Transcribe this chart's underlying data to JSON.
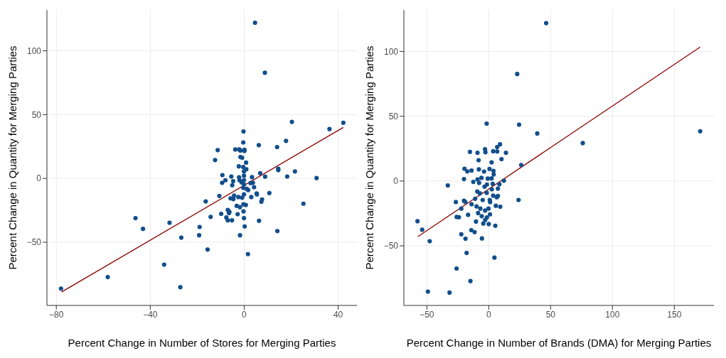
{
  "chart_data": [
    {
      "type": "scatter",
      "xlabel": "Percent Change in Number of Stores for Merging Parties",
      "ylabel": "Percent Change in Quantity for Merging Parties",
      "xlim": [
        -84,
        48
      ],
      "ylim": [
        -99.5,
        132
      ],
      "xticks": [
        {
          "value": -80,
          "label": "−80"
        },
        {
          "value": -40,
          "label": "−40"
        },
        0,
        40
      ],
      "yticks": [
        {
          "value": -50,
          "label": "−50"
        },
        0,
        50,
        100
      ],
      "grid": true,
      "series": [
        {
          "marker": "circle",
          "color": "#124e8c",
          "x": [
            4.6,
            8.8,
            20.3,
            42.2,
            36.3,
            -0.3,
            17.8,
            -0.4,
            6.2,
            14,
            -11.3,
            -3.8,
            -2.1,
            -1.6,
            0.1,
            0.1,
            -12.4,
            -1.6,
            -0.9,
            0.8,
            -2.3,
            -0.4,
            0.9,
            14.5,
            14.5,
            6.8,
            21.6,
            -9.3,
            -5.5,
            3.3,
            8.9,
            18.3,
            30.8,
            -9.4,
            -8,
            -4.7,
            -5.1,
            -2.2,
            -2,
            -1.1,
            -0.1,
            -0.1,
            -0.1,
            -0.1,
            -0.4,
            1.1,
            1.7,
            2.7,
            3.7,
            4.2,
            5.3,
            5.4,
            10.7,
            3,
            -0.1,
            -10.6,
            -4.3,
            -5.8,
            -4.6,
            -2.5,
            -0.9,
            -16.4,
            7.6,
            7.3,
            25.2,
            -3.2,
            -1.8,
            -0.3,
            0.7,
            -0.3,
            -9.8,
            -7,
            -6.3,
            -6.5,
            -2.8,
            -14.3,
            -7.6,
            -7,
            -5.2,
            -0.1,
            6.3,
            -46.3,
            -31.8,
            -43.1,
            -19,
            0.2,
            -19.2,
            -1.8,
            14.1,
            -26.8,
            -15.6,
            1.6,
            -34.1,
            -58.1,
            -27.2,
            -78
          ],
          "values": [
            122,
            82.8,
            44.3,
            43.6,
            38.7,
            36.8,
            29.4,
            28.2,
            26.1,
            24.6,
            22.2,
            22.7,
            22.7,
            21.8,
            22.5,
            21.6,
            14.4,
            16.8,
            16.2,
            12.4,
            9.5,
            8.9,
            7.2,
            7.6,
            6.5,
            4.1,
            5.5,
            2.6,
            1.5,
            1,
            1.4,
            1.5,
            0.3,
            -3.4,
            -1.4,
            -2.1,
            -5.3,
            0.9,
            -1.4,
            -3.1,
            5.5,
            2.1,
            -1.4,
            -4.8,
            -7.4,
            -8.2,
            -9.1,
            -3.6,
            -3.4,
            -6.9,
            -11.7,
            -12.5,
            -11.5,
            -14.6,
            -12.5,
            -13.7,
            -13.4,
            -15.6,
            -16.2,
            -14.6,
            -15.1,
            -18,
            -16.5,
            -18.2,
            -19.8,
            -21.5,
            -22.5,
            -20.3,
            -20.8,
            -25.8,
            -27.7,
            -24.7,
            -26.3,
            -27.1,
            -28,
            -30.1,
            -30.6,
            -32.8,
            -32.8,
            -31.1,
            -33.2,
            -31.1,
            -34.7,
            -39.5,
            -38,
            -37.6,
            -44.5,
            -44.5,
            -41.2,
            -46.4,
            -55.7,
            -59.3,
            -67.5,
            -77.3,
            -85.2,
            -86.3
          ]
        },
        {
          "type": "line",
          "marker": "none",
          "color": "#8b0000",
          "x": [
            -77.8,
            42.2
          ],
          "values": [
            -89,
            40
          ]
        }
      ]
    },
    {
      "type": "scatter",
      "xlabel": "Percent Change in Number of Brands (DMA) for Merging Parties",
      "ylabel": "Percent Change in Quantity for Merging Parties",
      "xlim": [
        -68.6,
        182
      ],
      "ylim": [
        -96,
        132
      ],
      "xticks": [
        {
          "value": -50,
          "label": "−50"
        },
        0,
        50,
        100,
        150
      ],
      "yticks": [
        {
          "value": -50,
          "label": "−50"
        },
        0,
        50,
        100
      ],
      "grid": true,
      "series": [
        {
          "marker": "circle",
          "color": "#124e8c",
          "x": [
            46.4,
            23,
            -1.7,
            24.5,
            39.2,
            170.9,
            76,
            9.1,
            6.8,
            -15.2,
            -9.1,
            -3,
            -2.7,
            3.6,
            6.8,
            13.9,
            10.3,
            -8.2,
            2.3,
            26.2,
            -19.6,
            -17.3,
            -13.9,
            -8,
            -3.8,
            0.6,
            3.8,
            4,
            -20,
            -12.5,
            -9.1,
            -5.9,
            -0.8,
            2.3,
            12.2,
            -33.1,
            -7.8,
            -3.4,
            -1.5,
            3.2,
            8.6,
            7.4,
            2.5,
            -9.3,
            -7.2,
            -1.7,
            3.6,
            7.4,
            6.5,
            -11,
            -4.9,
            0.8,
            1.1,
            -26.6,
            -20,
            -19,
            -13.9,
            -22.2,
            -9.9,
            -6.8,
            -3,
            -0.2,
            5.7,
            9.3,
            -16.7,
            -8.6,
            -5.7,
            1,
            -25.9,
            -24.1,
            -1.5,
            -2.9,
            -10.3,
            -4.4,
            0,
            5.3,
            -57.6,
            -53.8,
            -14.1,
            -11.4,
            -22.2,
            -47.7,
            -18.8,
            -5.5,
            24.1,
            -17.9,
            4.6,
            -26,
            -14.8,
            -49.2,
            -31.7
          ],
          "values": [
            121.8,
            82.6,
            44.3,
            43.5,
            36.7,
            38.4,
            29.3,
            28.3,
            26.2,
            22.5,
            21.8,
            24.5,
            22.2,
            23,
            22.8,
            21.8,
            16.9,
            16.1,
            14.4,
            12.4,
            9.5,
            7.4,
            8.1,
            9,
            7.3,
            9.3,
            7.8,
            5.1,
            1.5,
            -0.7,
            1.2,
            2.4,
            1.9,
            2,
            0.3,
            -3.4,
            -1.4,
            -4.4,
            -2.7,
            -2.2,
            -2.5,
            -5.9,
            -6.4,
            -8.1,
            -9.5,
            -9.1,
            -11.3,
            -11.5,
            -12.5,
            -13.7,
            -14.6,
            -14.6,
            -16.2,
            -16.2,
            -15.2,
            -16.1,
            -17.9,
            -21.3,
            -19.6,
            -21.3,
            -22.8,
            -21.3,
            -19.1,
            -19.8,
            -26.1,
            -24.7,
            -27.1,
            -25.7,
            -27.7,
            -27.9,
            -28.1,
            -30.1,
            -31.3,
            -32.8,
            -33.2,
            -34.5,
            -31,
            -37.6,
            -37.9,
            -39.4,
            -41.1,
            -46.4,
            -44.5,
            -44.3,
            -14.6,
            -55.5,
            -59.1,
            -67.5,
            -77.2,
            -85.3,
            -86.1
          ]
        },
        {
          "type": "line",
          "marker": "none",
          "color": "#8b0000",
          "x": [
            -57.4,
            170.9
          ],
          "values": [
            -43,
            103.4
          ]
        }
      ]
    }
  ]
}
